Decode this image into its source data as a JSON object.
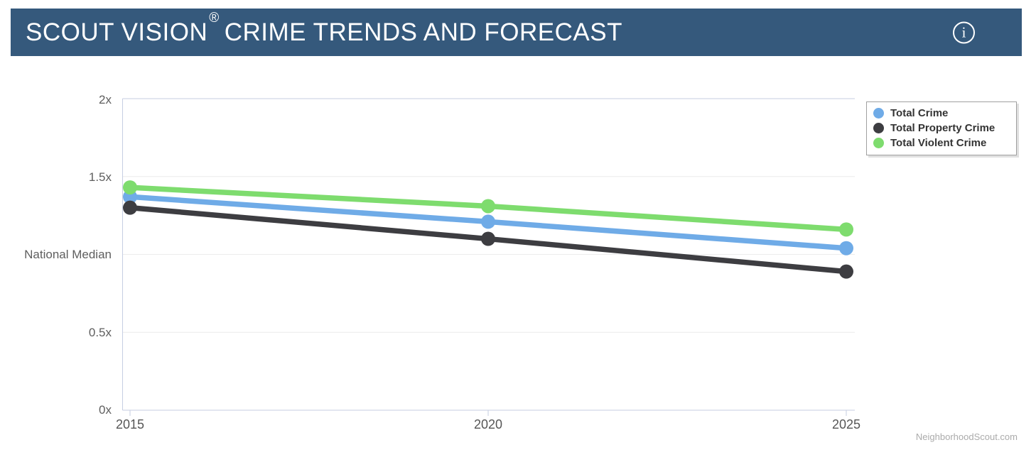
{
  "header": {
    "title_prefix": "SCOUT VISION",
    "registered_mark": "®",
    "title_suffix": "CRIME TRENDS AND FORECAST",
    "info_glyph": "i"
  },
  "watermark": "NeighborhoodScout.com",
  "colors": {
    "header_bg": "#35597c",
    "axis_border": "#c6cee2",
    "gridline": "#ececec",
    "total_crime": "#6fabe7",
    "total_property_crime": "#3d3d41",
    "total_violent_crime": "#7edc6e"
  },
  "chart_data": {
    "type": "line",
    "x": [
      2015,
      2020,
      2025
    ],
    "x_tick_labels": [
      "2015",
      "2020",
      "2025"
    ],
    "series": [
      {
        "name": "Total Crime",
        "color": "#6fabe7",
        "values": [
          1.37,
          1.21,
          1.04
        ]
      },
      {
        "name": "Total Property Crime",
        "color": "#3d3d41",
        "values": [
          1.3,
          1.1,
          0.89
        ]
      },
      {
        "name": "Total Violent Crime",
        "color": "#7edc6e",
        "values": [
          1.43,
          1.31,
          1.16
        ]
      }
    ],
    "y_axis": {
      "range": [
        0,
        2
      ],
      "ticks": [
        {
          "value": 0,
          "label": "0x"
        },
        {
          "value": 0.5,
          "label": "0.5x"
        },
        {
          "value": 1,
          "label": "National Median"
        },
        {
          "value": 1.5,
          "label": "1.5x"
        },
        {
          "value": 2,
          "label": "2x"
        }
      ]
    },
    "grid": true,
    "legend_position": "top-right"
  },
  "legend": {
    "items": [
      {
        "label": "Total Crime",
        "color": "#6fabe7"
      },
      {
        "label": "Total Property Crime",
        "color": "#3d3d41"
      },
      {
        "label": "Total Violent Crime",
        "color": "#7edc6e"
      }
    ]
  }
}
